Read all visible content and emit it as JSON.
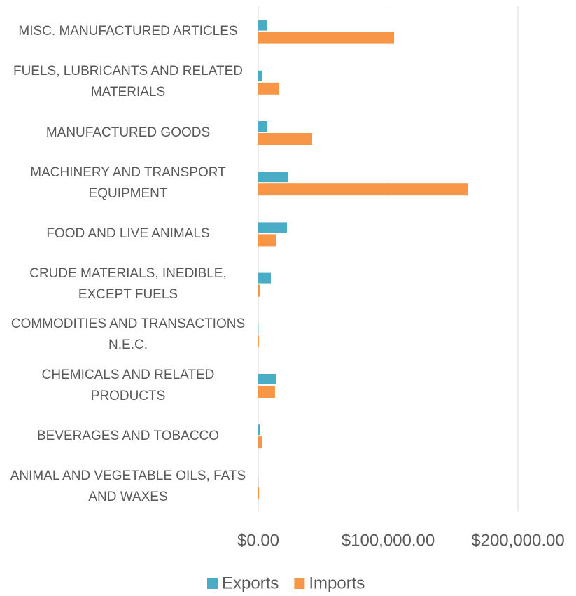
{
  "chart_data": {
    "type": "hbar",
    "categories": [
      "MISC. MANUFACTURED ARTICLES",
      "FUELS, LUBRICANTS AND RELATED MATERIALS",
      "MANUFACTURED GOODS",
      "MACHINERY AND TRANSPORT EQUIPMENT",
      "FOOD AND LIVE ANIMALS",
      "CRUDE MATERIALS, INEDIBLE, EXCEPT FUELS",
      "COMMODITIES AND TRANSACTIONS N.E.C.",
      "CHEMICALS AND RELATED PRODUCTS",
      "BEVERAGES AND TOBACCO",
      "ANIMAL AND VEGETABLE OILS, FATS AND WAXES"
    ],
    "series": [
      {
        "name": "Exports",
        "color": "#4bacc6",
        "values": [
          6500,
          2700,
          7000,
          23200,
          22100,
          9700,
          200,
          14000,
          1100,
          100
        ]
      },
      {
        "name": "Imports",
        "color": "#f79646",
        "values": [
          104600,
          16200,
          41500,
          161200,
          13500,
          1600,
          500,
          12900,
          3200,
          600
        ]
      }
    ],
    "xlim": [
      0,
      200000
    ],
    "xticks": [
      {
        "value": 0,
        "label": "$0.00"
      },
      {
        "value": 100000,
        "label": "$100,000.00"
      },
      {
        "value": 200000,
        "label": "$200,000.00"
      }
    ],
    "grid": true,
    "legend": "bottom"
  }
}
